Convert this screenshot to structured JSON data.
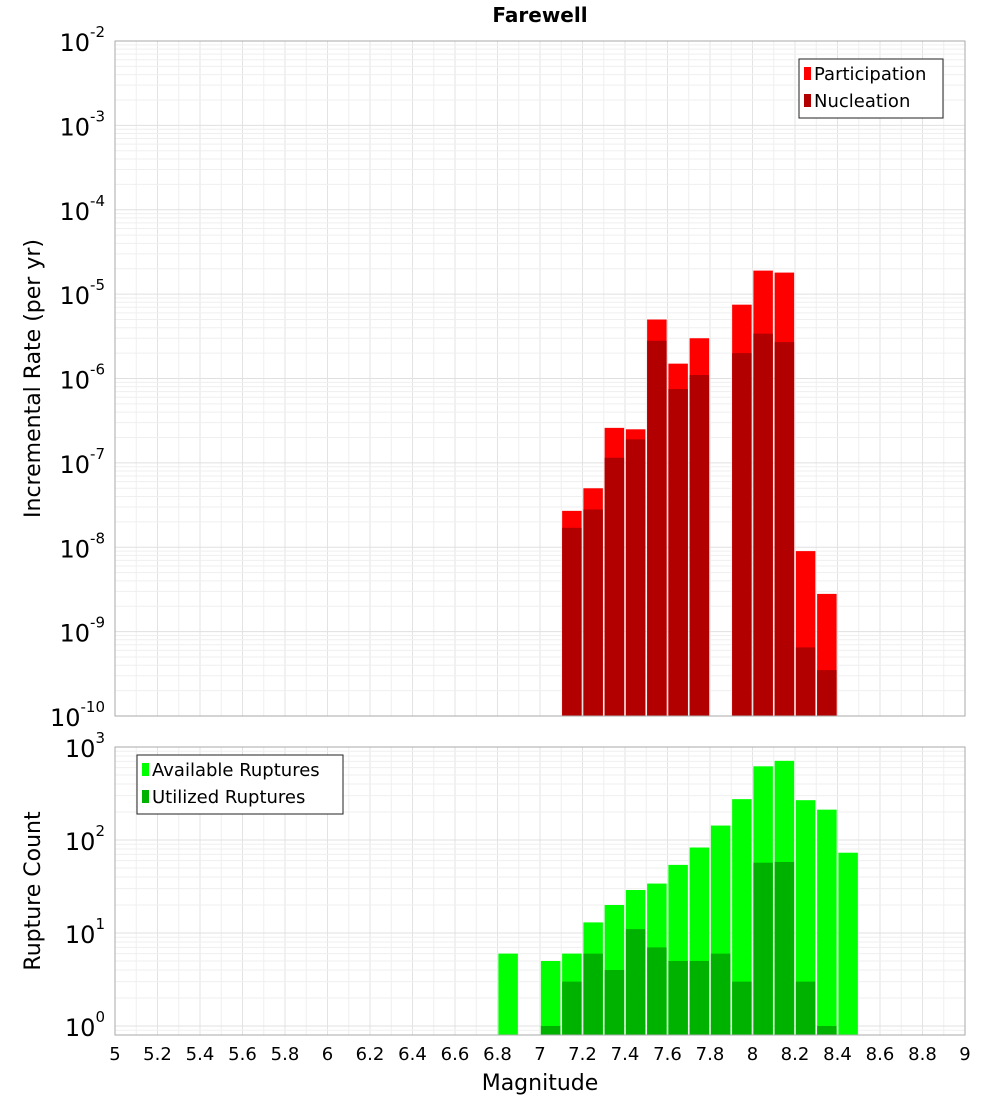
{
  "chart_data": [
    {
      "type": "bar",
      "title": "Farewell",
      "xlabel": "",
      "ylabel": "Incremental Rate (per yr)",
      "yscale": "log",
      "ylim": [
        1e-10,
        0.01
      ],
      "xlim": [
        5,
        9
      ],
      "grid": true,
      "legend_position": "top-right",
      "y_tick_labels": [
        {
          "base": "10",
          "exp": "-10"
        },
        {
          "base": "10",
          "exp": "-9"
        },
        {
          "base": "10",
          "exp": "-8"
        },
        {
          "base": "10",
          "exp": "-7"
        },
        {
          "base": "10",
          "exp": "-6"
        },
        {
          "base": "10",
          "exp": "-5"
        },
        {
          "base": "10",
          "exp": "-4"
        },
        {
          "base": "10",
          "exp": "-3"
        },
        {
          "base": "10",
          "exp": "-2"
        }
      ],
      "x": [
        7.15,
        7.25,
        7.35,
        7.45,
        7.55,
        7.65,
        7.75,
        7.95,
        8.05,
        8.15,
        8.25,
        8.35
      ],
      "series": [
        {
          "name": "Participation",
          "color": "#ff0000",
          "values": [
            2.7e-08,
            5e-08,
            2.6e-07,
            2.5e-07,
            5e-06,
            1.5e-06,
            3e-06,
            7.5e-06,
            1.9e-05,
            1.8e-05,
            9e-09,
            2.8e-09
          ]
        },
        {
          "name": "Nucleation",
          "color": "#b20000",
          "values": [
            1.7e-08,
            2.8e-08,
            1.15e-07,
            1.9e-07,
            2.8e-06,
            7.5e-07,
            1.1e-06,
            2e-06,
            3.4e-06,
            2.7e-06,
            6.5e-10,
            3.5e-10
          ]
        }
      ]
    },
    {
      "type": "bar",
      "title": "",
      "xlabel": "Magnitude",
      "ylabel": "Rupture Count",
      "yscale": "log",
      "ylim": [
        0.8,
        1000
      ],
      "xlim": [
        5,
        9
      ],
      "grid": true,
      "legend_position": "top-left",
      "y_tick_labels": [
        {
          "base": "10",
          "exp": "0"
        },
        {
          "base": "10",
          "exp": "1"
        },
        {
          "base": "10",
          "exp": "2"
        },
        {
          "base": "10",
          "exp": "3"
        }
      ],
      "x_tick_labels": [
        "5",
        "5.2",
        "5.4",
        "5.6",
        "5.8",
        "6",
        "6.2",
        "6.4",
        "6.6",
        "6.8",
        "7",
        "7.2",
        "7.4",
        "7.6",
        "7.8",
        "8",
        "8.2",
        "8.4",
        "8.6",
        "8.8",
        "9"
      ],
      "x": [
        6.85,
        7.05,
        7.15,
        7.25,
        7.35,
        7.45,
        7.55,
        7.65,
        7.75,
        7.85,
        7.95,
        8.05,
        8.15,
        8.25,
        8.35,
        8.45
      ],
      "series": [
        {
          "name": "Available Ruptures",
          "color": "#00ff00",
          "values": [
            6,
            5,
            6,
            13,
            20,
            29,
            34,
            54,
            83,
            143,
            275,
            620,
            710,
            268,
            212,
            73
          ]
        },
        {
          "name": "Utilized Ruptures",
          "color": "#00b200",
          "values": [
            null,
            1,
            3,
            6,
            4,
            11,
            7,
            5,
            5,
            6,
            3,
            57,
            58,
            3,
            1,
            null
          ]
        }
      ]
    }
  ]
}
